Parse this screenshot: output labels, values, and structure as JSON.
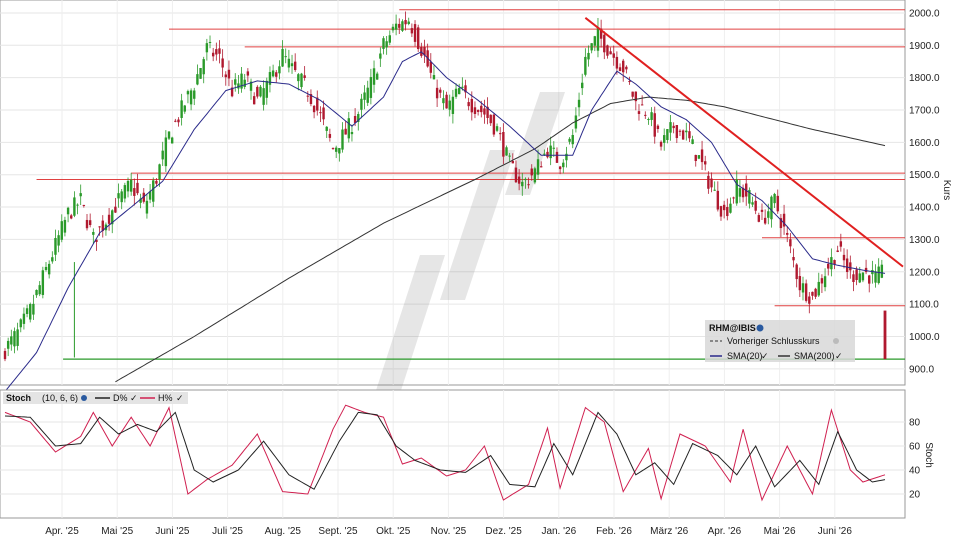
{
  "chart_data": [
    {
      "type": "candlestick",
      "symbol": "RHM@IBIS",
      "ylabel": "Kurs",
      "ylim": [
        850,
        2040
      ],
      "yticks": [
        900,
        1000,
        1100,
        1200,
        1300,
        1400,
        1500,
        1600,
        1700,
        1800,
        1900,
        2000
      ],
      "ytick_labels": [
        "900.0",
        "1000.0",
        "1100.0",
        "1200.0",
        "1300.0",
        "1400.0",
        "1500.0",
        "1600.0",
        "1700.0",
        "1800.0",
        "1900.0",
        "2000.0"
      ],
      "x_months": [
        "Apr. '25",
        "Mai '25",
        "Juni '25",
        "Juli '25",
        "Aug. '25",
        "Sept. '25",
        "Okt. '25",
        "Nov. '25",
        "Dez. '25",
        "Jan. '26",
        "Feb. '26",
        "März '26",
        "Apr. '26",
        "Mai '26",
        "Juni '26"
      ],
      "close_path": [
        [
          0,
          960
        ],
        [
          4,
          1010
        ],
        [
          8,
          1080
        ],
        [
          12,
          1180
        ],
        [
          16,
          1280
        ],
        [
          20,
          1380
        ],
        [
          24,
          1420
        ],
        [
          28,
          1300
        ],
        [
          32,
          1360
        ],
        [
          36,
          1420
        ],
        [
          40,
          1470
        ],
        [
          44,
          1400
        ],
        [
          48,
          1490
        ],
        [
          52,
          1620
        ],
        [
          56,
          1700
        ],
        [
          60,
          1780
        ],
        [
          64,
          1890
        ],
        [
          68,
          1860
        ],
        [
          72,
          1760
        ],
        [
          76,
          1800
        ],
        [
          80,
          1730
        ],
        [
          84,
          1790
        ],
        [
          88,
          1870
        ],
        [
          92,
          1810
        ],
        [
          96,
          1760
        ],
        [
          100,
          1680
        ],
        [
          104,
          1580
        ],
        [
          108,
          1630
        ],
        [
          112,
          1690
        ],
        [
          116,
          1780
        ],
        [
          120,
          1900
        ],
        [
          124,
          1960
        ],
        [
          128,
          1980
        ],
        [
          132,
          1890
        ],
        [
          136,
          1780
        ],
        [
          140,
          1700
        ],
        [
          144,
          1760
        ],
        [
          148,
          1720
        ],
        [
          152,
          1690
        ],
        [
          156,
          1640
        ],
        [
          160,
          1530
        ],
        [
          164,
          1470
        ],
        [
          168,
          1510
        ],
        [
          172,
          1580
        ],
        [
          176,
          1540
        ],
        [
          180,
          1620
        ],
        [
          184,
          1860
        ],
        [
          188,
          1930
        ],
        [
          192,
          1880
        ],
        [
          196,
          1830
        ],
        [
          200,
          1720
        ],
        [
          204,
          1690
        ],
        [
          208,
          1590
        ],
        [
          212,
          1650
        ],
        [
          216,
          1620
        ],
        [
          220,
          1550
        ],
        [
          224,
          1460
        ],
        [
          228,
          1380
        ],
        [
          232,
          1460
        ],
        [
          236,
          1430
        ],
        [
          240,
          1360
        ],
        [
          244,
          1420
        ],
        [
          248,
          1300
        ],
        [
          252,
          1160
        ],
        [
          256,
          1120
        ],
        [
          260,
          1200
        ],
        [
          264,
          1270
        ],
        [
          268,
          1190
        ],
        [
          272,
          1200
        ],
        [
          276,
          1180
        ],
        [
          279,
          1200
        ]
      ],
      "last_bar": {
        "high": 1080,
        "low": 930,
        "close": 930
      },
      "sma20": [
        [
          0,
          830
        ],
        [
          10,
          950
        ],
        [
          20,
          1150
        ],
        [
          30,
          1320
        ],
        [
          40,
          1400
        ],
        [
          50,
          1480
        ],
        [
          60,
          1640
        ],
        [
          70,
          1760
        ],
        [
          80,
          1790
        ],
        [
          90,
          1780
        ],
        [
          100,
          1730
        ],
        [
          110,
          1650
        ],
        [
          120,
          1740
        ],
        [
          126,
          1850
        ],
        [
          132,
          1880
        ],
        [
          140,
          1800
        ],
        [
          150,
          1730
        ],
        [
          160,
          1650
        ],
        [
          170,
          1560
        ],
        [
          180,
          1560
        ],
        [
          186,
          1700
        ],
        [
          194,
          1820
        ],
        [
          200,
          1780
        ],
        [
          208,
          1710
        ],
        [
          216,
          1670
        ],
        [
          224,
          1600
        ],
        [
          232,
          1470
        ],
        [
          240,
          1420
        ],
        [
          248,
          1340
        ],
        [
          256,
          1240
        ],
        [
          264,
          1220
        ],
        [
          272,
          1205
        ],
        [
          279,
          1195
        ]
      ],
      "sma200": [
        [
          35,
          860
        ],
        [
          60,
          1000
        ],
        [
          90,
          1180
        ],
        [
          120,
          1350
        ],
        [
          150,
          1490
        ],
        [
          168,
          1580
        ],
        [
          180,
          1660
        ],
        [
          192,
          1720
        ],
        [
          204,
          1740
        ],
        [
          216,
          1730
        ],
        [
          228,
          1710
        ],
        [
          240,
          1680
        ],
        [
          256,
          1640
        ],
        [
          279,
          1590
        ]
      ],
      "resistance_levels": [
        {
          "y": 2010,
          "x_start": 125,
          "x_end": 279
        },
        {
          "y": 1950,
          "x_start": 52,
          "x_end": 279
        },
        {
          "y": 1895,
          "x_start": 76,
          "x_end": 279
        },
        {
          "y": 1505,
          "x_start": 40,
          "x_end": 279
        },
        {
          "y": 1485,
          "x_start": 10,
          "x_end": 279
        },
        {
          "y": 1305,
          "x_start": 240,
          "x_end": 279
        },
        {
          "y": 1095,
          "x_start": 244,
          "x_end": 279
        }
      ],
      "support_level": {
        "y": 930,
        "x_start": 20,
        "x_end": 279
      },
      "downtrend": [
        [
          184,
          1985
        ],
        [
          279,
          1185
        ]
      ],
      "legend": {
        "symbol": "RHM@IBIS",
        "prev_close": "Vorheriger Schlusskurs",
        "sma20": "SMA(20)",
        "sma200": "SMA(200)"
      },
      "colors": {
        "up": "#2a9a2a",
        "down": "#b0192f",
        "sma20": "#2a2a8a",
        "sma200": "#333333",
        "level": "#e04040",
        "trend": "#e02020",
        "support": "#2a9a2a"
      }
    },
    {
      "type": "line",
      "title": "Stoch",
      "params": "(10, 6, 6)",
      "ylim": [
        0,
        100
      ],
      "yticks": [
        20,
        40,
        60,
        80
      ],
      "ylabel": "Stoch",
      "series": [
        {
          "name": "D%",
          "color": "#222222"
        },
        {
          "name": "H%",
          "color": "#d02050"
        }
      ],
      "k_path": [
        [
          0,
          88
        ],
        [
          8,
          80
        ],
        [
          16,
          55
        ],
        [
          24,
          68
        ],
        [
          28,
          88
        ],
        [
          34,
          60
        ],
        [
          40,
          84
        ],
        [
          46,
          60
        ],
        [
          52,
          92
        ],
        [
          58,
          20
        ],
        [
          64,
          32
        ],
        [
          72,
          44
        ],
        [
          80,
          70
        ],
        [
          88,
          22
        ],
        [
          96,
          20
        ],
        [
          104,
          74
        ],
        [
          108,
          94
        ],
        [
          114,
          88
        ],
        [
          120,
          84
        ],
        [
          126,
          45
        ],
        [
          132,
          50
        ],
        [
          140,
          35
        ],
        [
          146,
          40
        ],
        [
          152,
          60
        ],
        [
          158,
          15
        ],
        [
          166,
          28
        ],
        [
          172,
          75
        ],
        [
          176,
          25
        ],
        [
          184,
          92
        ],
        [
          190,
          80
        ],
        [
          196,
          22
        ],
        [
          204,
          58
        ],
        [
          208,
          16
        ],
        [
          214,
          70
        ],
        [
          222,
          60
        ],
        [
          230,
          30
        ],
        [
          234,
          74
        ],
        [
          240,
          15
        ],
        [
          248,
          60
        ],
        [
          256,
          20
        ],
        [
          262,
          90
        ],
        [
          268,
          40
        ],
        [
          272,
          30
        ],
        [
          279,
          36
        ]
      ],
      "d_path": [
        [
          0,
          85
        ],
        [
          8,
          84
        ],
        [
          16,
          60
        ],
        [
          24,
          62
        ],
        [
          30,
          84
        ],
        [
          36,
          70
        ],
        [
          42,
          78
        ],
        [
          48,
          72
        ],
        [
          54,
          88
        ],
        [
          60,
          40
        ],
        [
          66,
          30
        ],
        [
          74,
          40
        ],
        [
          82,
          64
        ],
        [
          90,
          36
        ],
        [
          98,
          24
        ],
        [
          106,
          64
        ],
        [
          112,
          88
        ],
        [
          118,
          86
        ],
        [
          124,
          60
        ],
        [
          130,
          48
        ],
        [
          138,
          40
        ],
        [
          146,
          38
        ],
        [
          154,
          52
        ],
        [
          160,
          28
        ],
        [
          168,
          26
        ],
        [
          174,
          62
        ],
        [
          180,
          36
        ],
        [
          188,
          88
        ],
        [
          194,
          70
        ],
        [
          200,
          36
        ],
        [
          206,
          46
        ],
        [
          212,
          28
        ],
        [
          218,
          62
        ],
        [
          226,
          52
        ],
        [
          232,
          36
        ],
        [
          238,
          60
        ],
        [
          244,
          26
        ],
        [
          252,
          48
        ],
        [
          258,
          28
        ],
        [
          264,
          72
        ],
        [
          270,
          40
        ],
        [
          275,
          30
        ],
        [
          279,
          32
        ]
      ]
    }
  ]
}
